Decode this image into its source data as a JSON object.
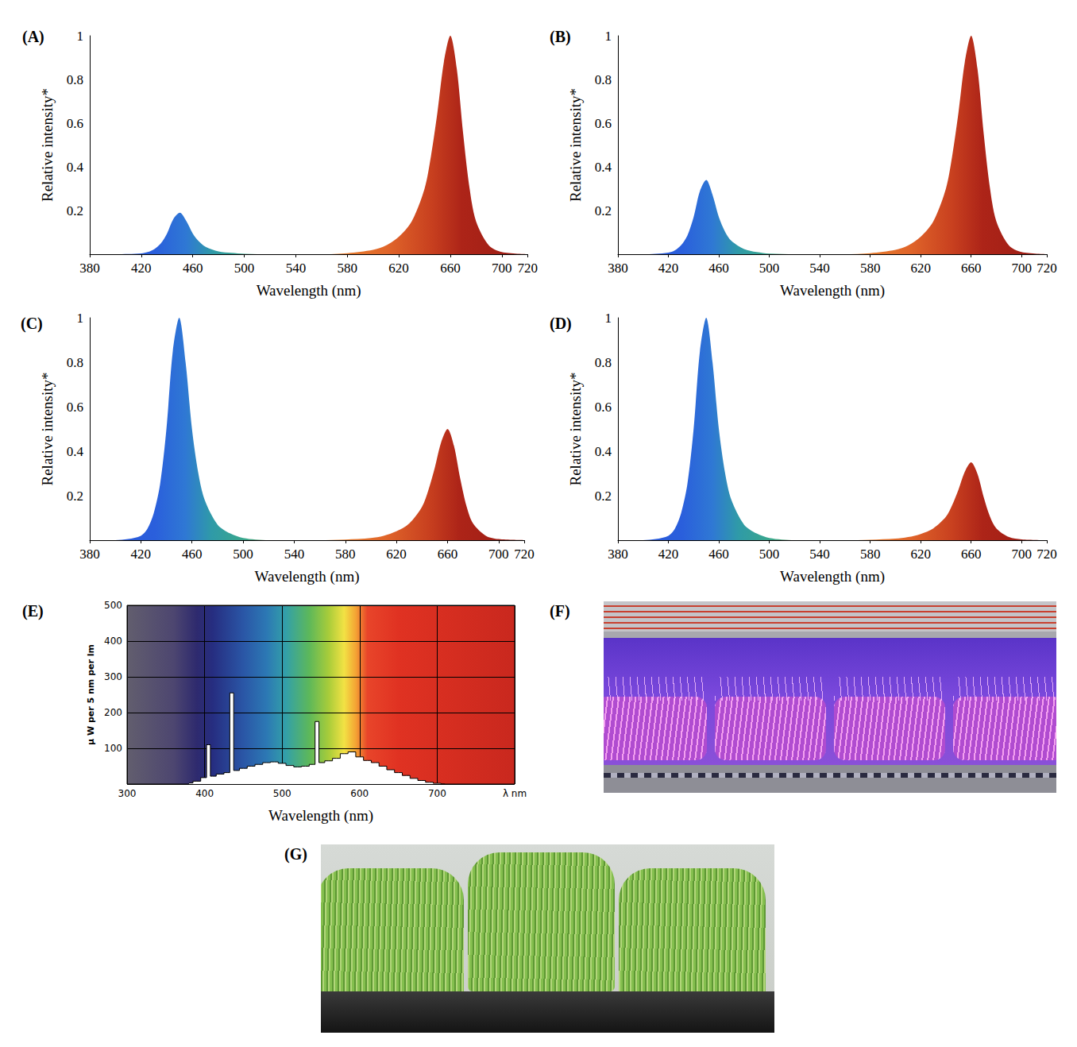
{
  "chart_data": [
    {
      "panel": "(A)",
      "type": "area",
      "xlabel": "Wavelength (nm)",
      "ylabel": "Relative intensity*",
      "x": [
        380,
        400,
        410,
        420,
        425,
        430,
        435,
        440,
        445,
        450,
        455,
        460,
        465,
        470,
        480,
        490,
        500,
        520,
        560,
        580,
        600,
        610,
        620,
        630,
        640,
        645,
        650,
        655,
        660,
        665,
        670,
        675,
        680,
        690,
        700,
        720
      ],
      "values": [
        0,
        0,
        0.001,
        0.004,
        0.01,
        0.023,
        0.048,
        0.095,
        0.162,
        0.19,
        0.152,
        0.095,
        0.057,
        0.034,
        0.013,
        0.006,
        0.002,
        0,
        0,
        0.005,
        0.02,
        0.04,
        0.08,
        0.15,
        0.3,
        0.45,
        0.65,
        0.88,
        1,
        0.85,
        0.55,
        0.3,
        0.15,
        0.04,
        0.01,
        0
      ],
      "xlim": [
        380,
        720
      ],
      "xticks": [
        380,
        420,
        460,
        500,
        540,
        580,
        620,
        660,
        700,
        720
      ],
      "ylim": [
        0,
        1
      ],
      "yticks": [
        0.2,
        0.4,
        0.6,
        0.8,
        1
      ],
      "grid": false
    },
    {
      "panel": "(B)",
      "type": "area",
      "xlabel": "Wavelength (nm)",
      "ylabel": "Relative intensity*",
      "x": [
        380,
        400,
        410,
        420,
        425,
        430,
        435,
        440,
        445,
        450,
        455,
        460,
        465,
        470,
        480,
        490,
        500,
        520,
        560,
        580,
        600,
        610,
        620,
        630,
        640,
        645,
        650,
        655,
        660,
        665,
        670,
        675,
        680,
        690,
        700,
        720
      ],
      "values": [
        0,
        0,
        0.002,
        0.007,
        0.017,
        0.041,
        0.085,
        0.17,
        0.289,
        0.34,
        0.272,
        0.17,
        0.102,
        0.061,
        0.024,
        0.01,
        0.003,
        0,
        0,
        0.005,
        0.02,
        0.04,
        0.08,
        0.15,
        0.3,
        0.45,
        0.65,
        0.88,
        1,
        0.85,
        0.55,
        0.3,
        0.15,
        0.04,
        0.01,
        0
      ],
      "xlim": [
        380,
        720
      ],
      "xticks": [
        380,
        420,
        460,
        500,
        540,
        580,
        620,
        660,
        700,
        720
      ],
      "ylim": [
        0,
        1
      ],
      "yticks": [
        0.2,
        0.4,
        0.6,
        0.8,
        1
      ],
      "grid": false
    },
    {
      "panel": "(C)",
      "type": "area",
      "xlabel": "Wavelength (nm)",
      "ylabel": "Relative intensity*",
      "x": [
        380,
        400,
        410,
        420,
        425,
        430,
        435,
        440,
        445,
        450,
        455,
        460,
        465,
        470,
        480,
        490,
        500,
        520,
        560,
        580,
        600,
        610,
        620,
        630,
        640,
        645,
        650,
        655,
        660,
        665,
        670,
        675,
        680,
        690,
        700,
        720
      ],
      "values": [
        0,
        0,
        0.005,
        0.02,
        0.05,
        0.12,
        0.25,
        0.5,
        0.85,
        1,
        0.8,
        0.5,
        0.3,
        0.18,
        0.07,
        0.03,
        0.01,
        0,
        0,
        0.003,
        0.01,
        0.02,
        0.04,
        0.075,
        0.15,
        0.225,
        0.325,
        0.44,
        0.5,
        0.425,
        0.275,
        0.15,
        0.075,
        0.02,
        0.005,
        0
      ],
      "xlim": [
        380,
        720
      ],
      "xticks": [
        380,
        420,
        460,
        500,
        540,
        580,
        620,
        660,
        700,
        720
      ],
      "ylim": [
        0,
        1
      ],
      "yticks": [
        0.2,
        0.4,
        0.6,
        0.8,
        1
      ],
      "grid": false
    },
    {
      "panel": "(D)",
      "type": "area",
      "xlabel": "Wavelength (nm)",
      "ylabel": "Relative intensity*",
      "x": [
        380,
        400,
        410,
        420,
        425,
        430,
        435,
        440,
        445,
        450,
        455,
        460,
        465,
        470,
        480,
        490,
        500,
        520,
        560,
        580,
        600,
        610,
        620,
        630,
        640,
        645,
        650,
        655,
        660,
        665,
        670,
        675,
        680,
        690,
        700,
        720
      ],
      "values": [
        0,
        0,
        0.005,
        0.02,
        0.05,
        0.12,
        0.25,
        0.5,
        0.85,
        1,
        0.8,
        0.5,
        0.3,
        0.18,
        0.07,
        0.03,
        0.01,
        0,
        0,
        0.002,
        0.007,
        0.014,
        0.028,
        0.053,
        0.105,
        0.158,
        0.228,
        0.308,
        0.35,
        0.298,
        0.193,
        0.105,
        0.053,
        0.014,
        0.004,
        0
      ],
      "xlim": [
        380,
        720
      ],
      "xticks": [
        380,
        420,
        460,
        500,
        540,
        580,
        620,
        660,
        700,
        720
      ],
      "ylim": [
        0,
        1
      ],
      "yticks": [
        0.2,
        0.4,
        0.6,
        0.8,
        1
      ],
      "grid": false
    },
    {
      "panel": "(E)",
      "type": "step",
      "xlabel": "Wavelength (nm)",
      "ylabel": "μ W per 5 nm per lm",
      "x": [
        380,
        390,
        400,
        405,
        410,
        420,
        430,
        435,
        440,
        450,
        460,
        470,
        480,
        490,
        500,
        510,
        520,
        530,
        540,
        545,
        550,
        560,
        570,
        580,
        590,
        600,
        610,
        620,
        630,
        640,
        650,
        660,
        670,
        680,
        690,
        700,
        710
      ],
      "values": [
        3,
        8,
        18,
        110,
        22,
        28,
        32,
        255,
        38,
        44,
        50,
        55,
        60,
        62,
        58,
        52,
        48,
        50,
        55,
        175,
        60,
        65,
        72,
        85,
        90,
        76,
        66,
        60,
        50,
        40,
        32,
        24,
        16,
        10,
        5,
        2,
        0
      ],
      "xlim": [
        300,
        800
      ],
      "xticks": [
        300,
        400,
        500,
        600,
        700,
        {
          "value": 800,
          "label": "λ nm"
        }
      ],
      "ylim": [
        0,
        500
      ],
      "yticks": [
        100,
        200,
        300,
        400,
        500
      ],
      "grid": true
    }
  ],
  "photos": [
    {
      "panel": "(F)"
    },
    {
      "panel": "(G)"
    }
  ]
}
